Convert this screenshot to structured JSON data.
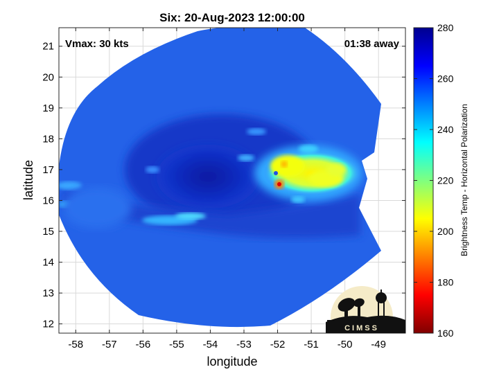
{
  "chart_data": {
    "type": "heatmap",
    "title": "Six: 20-Aug-2023 12:00:00",
    "xlabel": "longitude",
    "ylabel": "latitude",
    "xlim": [
      -58.5,
      -48.2
    ],
    "ylim": [
      11.7,
      21.6
    ],
    "xticks": [
      -58,
      -57,
      -56,
      -55,
      -54,
      -53,
      -52,
      -51,
      -50,
      -49
    ],
    "yticks": [
      12,
      13,
      14,
      15,
      16,
      17,
      18,
      19,
      20,
      21
    ],
    "grid": true,
    "annotations": {
      "vmax": "Vmax: 30 kts",
      "time_offset": "01:38 away"
    },
    "colorbar": {
      "label": "Brightness Temp - Horizontal Polarization",
      "min": 160,
      "max": 280,
      "ticks": [
        160,
        180,
        200,
        220,
        240,
        260,
        280
      ],
      "colormap": "jet"
    },
    "features": [
      {
        "kind": "cold-cloud-core",
        "lon": -51.2,
        "lat": 16.8,
        "value": 205
      },
      {
        "kind": "cold-cloud-core",
        "lon": -51.9,
        "lat": 16.55,
        "value": 175
      },
      {
        "kind": "cold-cloud-core",
        "lon": -51.75,
        "lat": 17.15,
        "value": 195
      },
      {
        "kind": "circulation-center",
        "lon": -53.7,
        "lat": 17.0,
        "value": 266
      }
    ]
  },
  "logo": {
    "text": "CIMSS",
    "icon": "cimss-satellite-dish-logo-icon"
  },
  "colors": {
    "background": "#2460e6",
    "ocean_cold": "#0a1fa8"
  }
}
